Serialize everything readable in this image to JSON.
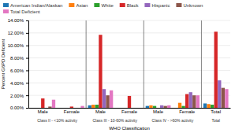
{
  "chart_data": {
    "type": "bar",
    "xlabel": "WHO Classification",
    "ylabel": "Percent G6PD Deficient",
    "categories": [
      "Male",
      "Female",
      "Male",
      "Female",
      "Male",
      "Female",
      "Total"
    ],
    "annotations": [
      "Class II - <10% activity",
      "Class III - 10-60% activity",
      "Class IV - >60% activity",
      "Total"
    ],
    "series": [
      {
        "name": "American Indian/Alaskan",
        "values": [
          0.0,
          0.0,
          0.004,
          0.0,
          0.003,
          0.0,
          0.007
        ]
      },
      {
        "name": "Asian",
        "values": [
          0.0,
          0.0,
          0.005,
          0.0,
          0.004,
          0.008,
          0.006
        ]
      },
      {
        "name": "White",
        "values": [
          0.0,
          0.0,
          0.005,
          0.0,
          0.003,
          0.003,
          0.005
        ]
      },
      {
        "name": "Black",
        "values": [
          0.015,
          0.002,
          0.117,
          0.019,
          0.0,
          0.022,
          0.122
        ]
      },
      {
        "name": "Hispanic",
        "values": [
          0.0,
          0.0,
          0.03,
          0.0,
          0.004,
          0.025,
          0.044
        ]
      },
      {
        "name": "Unknown",
        "values": [
          0.002,
          0.0,
          0.02,
          0.0,
          0.003,
          0.02,
          0.032
        ]
      },
      {
        "name": "Total Deficient",
        "values": [
          0.013,
          0.003,
          0.028,
          0.0,
          0.004,
          0.02,
          0.03
        ]
      }
    ],
    "ylim": [
      0,
      0.14
    ],
    "yticks": [
      {
        "value": 0.0,
        "label": "0.00%"
      },
      {
        "value": 0.02,
        "label": "2.00%"
      },
      {
        "value": 0.04,
        "label": "4.00%"
      },
      {
        "value": 0.06,
        "label": "6.00%"
      },
      {
        "value": 0.08,
        "label": "8.00%"
      },
      {
        "value": 0.1,
        "label": "10.00%"
      },
      {
        "value": 0.12,
        "label": "12.00%"
      },
      {
        "value": 0.14,
        "label": "14.00%"
      }
    ],
    "grid": true,
    "legend": "top"
  }
}
